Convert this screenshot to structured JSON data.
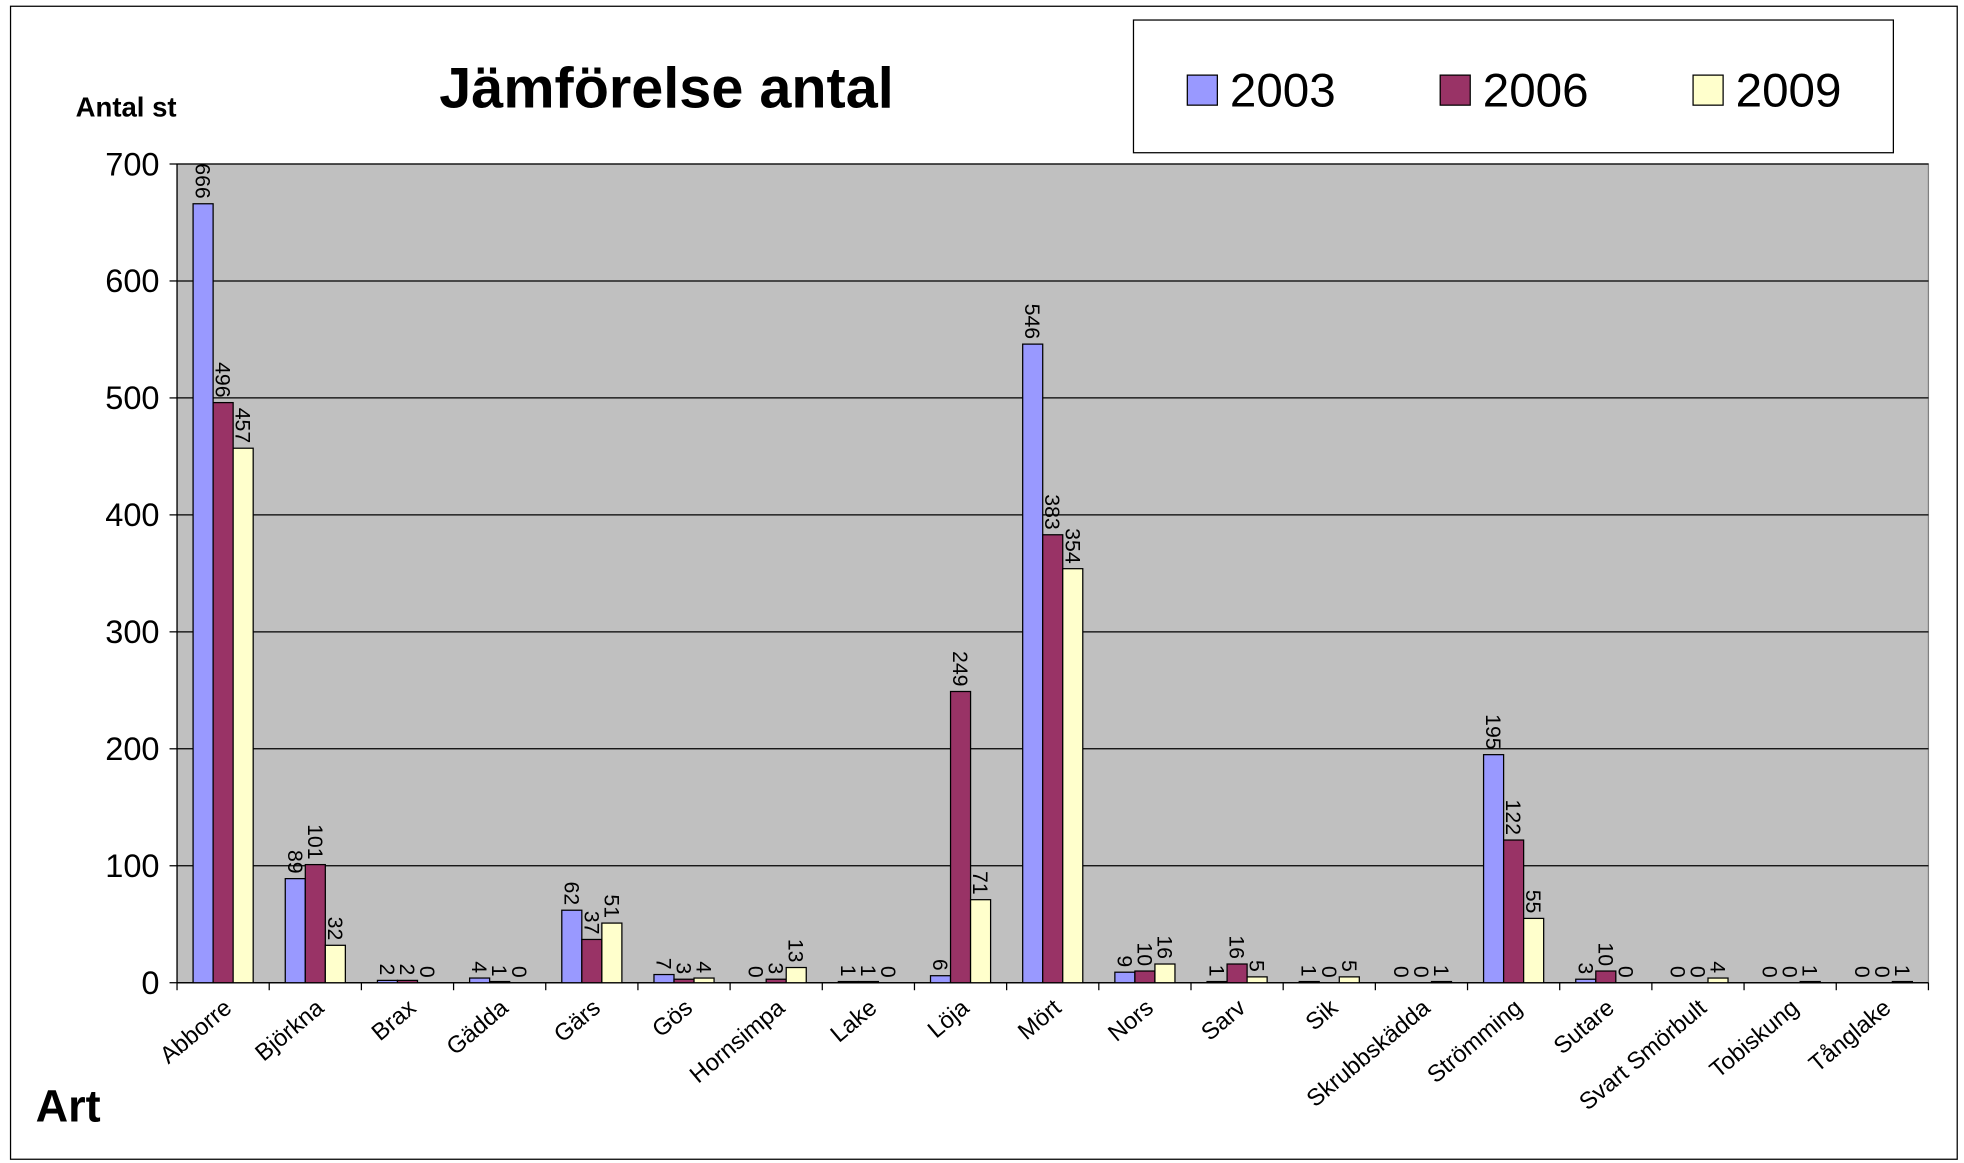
{
  "chart_data": {
    "type": "bar",
    "title": "Jämförelse antal",
    "y_label": "Antal st",
    "x_label": "Art",
    "categories": [
      "Abborre",
      "Björkna",
      "Brax",
      "Gädda",
      "Gärs",
      "Gös",
      "Hornsimpa",
      "Lake",
      "Löja",
      "Mört",
      "Nors",
      "Sarv",
      "Sik",
      "Skrubbskädda",
      "Strömming",
      "Sutare",
      "Svart Smörbult",
      "Tobiskung",
      "Tånglake"
    ],
    "series": [
      {
        "name": "2003",
        "color": "#9999ff",
        "values": [
          666,
          89,
          2,
          4,
          62,
          7,
          0,
          1,
          6,
          546,
          9,
          1,
          1,
          0,
          195,
          3,
          0,
          0,
          0
        ]
      },
      {
        "name": "2006",
        "color": "#993366",
        "values": [
          496,
          101,
          2,
          1,
          37,
          3,
          3,
          1,
          249,
          383,
          10,
          16,
          0,
          0,
          122,
          10,
          0,
          0,
          0
        ]
      },
      {
        "name": "2009",
        "color": "#ffffcc",
        "values": [
          457,
          32,
          0,
          0,
          51,
          4,
          13,
          0,
          71,
          354,
          16,
          5,
          5,
          1,
          55,
          0,
          4,
          1,
          1
        ]
      }
    ],
    "ylim": [
      0,
      700
    ],
    "yticks": [
      0,
      100,
      200,
      300,
      400,
      500,
      600,
      700
    ],
    "grid": true,
    "legend": "top-right",
    "plot_background": "#c0c0c0"
  }
}
